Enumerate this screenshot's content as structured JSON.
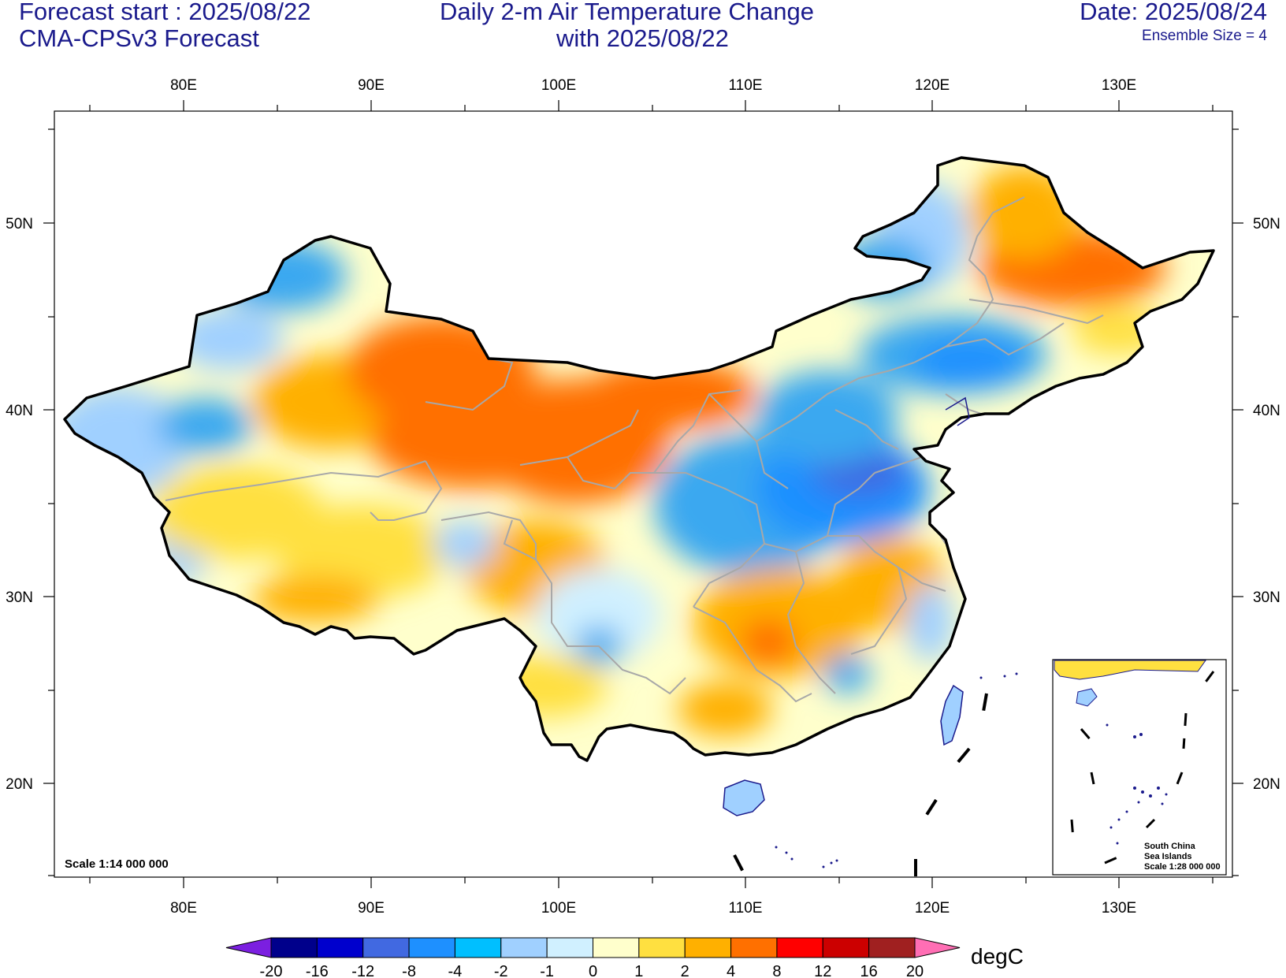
{
  "header": {
    "forecast_start": "Forecast start : 2025/08/22",
    "model": "CMA-CPSv3 Forecast",
    "title_line1": "Daily 2-m Air Temperature Change",
    "title_line2": "with 2025/08/22",
    "date": "Date: 2025/08/24",
    "ensemble": "Ensemble Size = 4"
  },
  "map": {
    "lon_labels": [
      "80E",
      "90E",
      "100E",
      "110E",
      "120E",
      "130E"
    ],
    "lat_labels": [
      "50N",
      "40N",
      "30N",
      "20N"
    ],
    "scale_label": "Scale 1:14 000 000",
    "inset": {
      "line1": "South China",
      "line2": "Sea Islands",
      "line3": "Scale 1:28 000 000"
    }
  },
  "colorbar": {
    "labels": [
      "-20",
      "-16",
      "-12",
      "-8",
      "-4",
      "-2",
      "-1",
      "0",
      "1",
      "2",
      "4",
      "8",
      "12",
      "16",
      "20"
    ],
    "colors": [
      "#7b1fe0",
      "#00008b",
      "#0000cd",
      "#4169e1",
      "#1e90ff",
      "#00bfff",
      "#a0d0ff",
      "#d0f0ff",
      "#ffffcc",
      "#ffe040",
      "#ffb000",
      "#ff7000",
      "#ff0000",
      "#cc0000",
      "#a02020",
      "#ff6eb4"
    ],
    "unit": "degC"
  }
}
